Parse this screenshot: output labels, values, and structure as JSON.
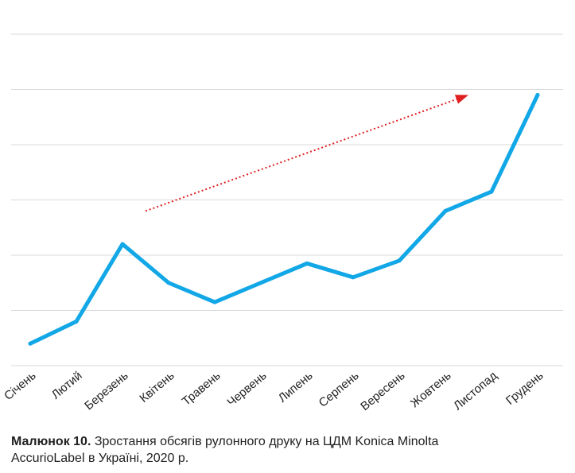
{
  "chart_data": {
    "type": "line",
    "categories": [
      "Січень",
      "Лютий",
      "Березень",
      "Квітень",
      "Травень",
      "Червень",
      "Липень",
      "Серпень",
      "Вересень",
      "Жовтень",
      "Листопад",
      "Грудень"
    ],
    "series": [
      {
        "values": [
          0.4,
          0.8,
          2.2,
          1.5,
          1.15,
          1.5,
          1.85,
          1.6,
          1.9,
          2.8,
          3.15,
          4.9
        ]
      }
    ],
    "ylim": [
      0,
      6
    ],
    "grid": true,
    "y_tick_labels": false,
    "colors": {
      "line": "#12a7e6",
      "trend_arrow": "#e02020",
      "grid": "#d9d9d9"
    },
    "annotation": {
      "type": "dotted-trend-arrow",
      "from": {
        "category_index": 2.5,
        "value": 2.8
      },
      "to": {
        "category_index": 9.5,
        "value": 4.9
      }
    }
  },
  "caption": {
    "label": "Малюнок 10.",
    "text_line1": " Зростання обсягів рулонного друку на ЦДМ Konica Minolta",
    "text_line2": "AccurioLabel в Україні, 2020 р."
  }
}
